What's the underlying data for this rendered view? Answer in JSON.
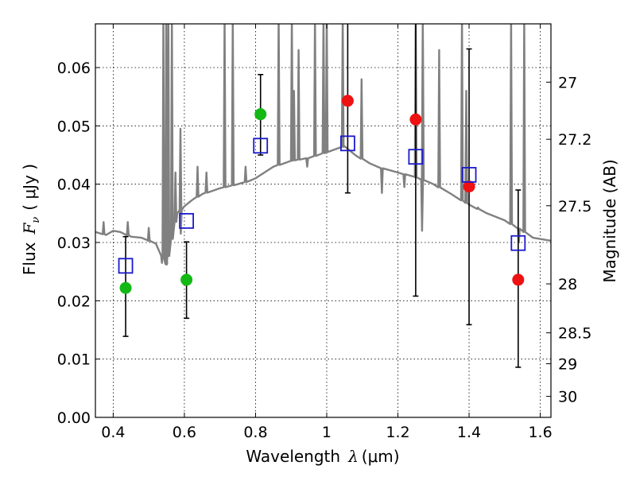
{
  "chart_data": {
    "type": "scatter",
    "title": "",
    "xlabel": {
      "prefix": "Wavelength",
      "symbol": "λ",
      "unit": "(μm)"
    },
    "ylabel": {
      "prefix": "Flux",
      "symbol": "F",
      "sub": "ν",
      "unit": "( μJy )"
    },
    "y2label": "Magnitude (AB)",
    "xlim": [
      0.35,
      1.63
    ],
    "ylim": [
      0.0,
      0.0675
    ],
    "grid": true,
    "xticks": [
      0.4,
      0.6,
      0.8,
      1.0,
      1.2,
      1.4,
      1.6
    ],
    "xtick_labels": [
      "0.4",
      "0.6",
      "0.8",
      "1",
      "1.2",
      "1.4",
      "1.6"
    ],
    "yticks": [
      0.0,
      0.01,
      0.02,
      0.03,
      0.04,
      0.05,
      0.06
    ],
    "ytick_labels": [
      "0.00",
      "0.01",
      "0.02",
      "0.03",
      "0.04",
      "0.05",
      "0.06"
    ],
    "y2ticks": [
      {
        "flux": 0.0575,
        "label": "27"
      },
      {
        "flux": 0.0477,
        "label": "27.2"
      },
      {
        "flux": 0.0363,
        "label": "27.5"
      },
      {
        "flux": 0.0229,
        "label": "28"
      },
      {
        "flux": 0.0145,
        "label": "28.5"
      },
      {
        "flux": 0.0092,
        "label": "29"
      },
      {
        "flux": 0.0036,
        "label": "30"
      }
    ],
    "series": [
      {
        "marker": "circle",
        "color": "#14b814",
        "points": [
          {
            "x": 0.435,
            "y": 0.0222,
            "lo": 0.0139,
            "hi": 0.031
          },
          {
            "x": 0.606,
            "y": 0.0236,
            "lo": 0.017,
            "hi": 0.0301
          },
          {
            "x": 0.814,
            "y": 0.052,
            "lo": 0.045,
            "hi": 0.0588
          }
        ]
      },
      {
        "marker": "circle",
        "color": "#ee1111",
        "points": [
          {
            "x": 1.059,
            "y": 0.0543,
            "lo": 0.0385,
            "hi": 0.07
          },
          {
            "x": 1.25,
            "y": 0.0511,
            "lo": 0.0208,
            "hi": 0.07
          },
          {
            "x": 1.4,
            "y": 0.0396,
            "lo": 0.0159,
            "hi": 0.0632
          },
          {
            "x": 1.538,
            "y": 0.0236,
            "lo": 0.0086,
            "hi": 0.039
          }
        ]
      },
      {
        "marker": "open-square",
        "color": "#1a1acc",
        "points": [
          {
            "x": 0.435,
            "y": 0.026
          },
          {
            "x": 0.606,
            "y": 0.0337
          },
          {
            "x": 0.814,
            "y": 0.0466
          },
          {
            "x": 1.059,
            "y": 0.047
          },
          {
            "x": 1.25,
            "y": 0.0447
          },
          {
            "x": 1.4,
            "y": 0.0416
          },
          {
            "x": 1.538,
            "y": 0.0299
          }
        ]
      }
    ],
    "model_spectrum": {
      "color": "#808080",
      "continuum": [
        [
          0.35,
          0.0318
        ],
        [
          0.38,
          0.0313
        ],
        [
          0.4,
          0.032
        ],
        [
          0.42,
          0.0318
        ],
        [
          0.45,
          0.031
        ],
        [
          0.48,
          0.0308
        ],
        [
          0.5,
          0.0303
        ],
        [
          0.52,
          0.0298
        ],
        [
          0.55,
          0.0262
        ],
        [
          0.58,
          0.035
        ],
        [
          0.6,
          0.0362
        ],
        [
          0.62,
          0.0372
        ],
        [
          0.65,
          0.0383
        ],
        [
          0.7,
          0.0393
        ],
        [
          0.75,
          0.04
        ],
        [
          0.78,
          0.0405
        ],
        [
          0.8,
          0.041
        ],
        [
          0.85,
          0.043
        ],
        [
          0.9,
          0.044
        ],
        [
          0.95,
          0.0445
        ],
        [
          1.0,
          0.0455
        ],
        [
          1.05,
          0.0465
        ],
        [
          1.08,
          0.045
        ],
        [
          1.12,
          0.0436
        ],
        [
          1.15,
          0.0428
        ],
        [
          1.2,
          0.042
        ],
        [
          1.25,
          0.0412
        ],
        [
          1.3,
          0.04
        ],
        [
          1.35,
          0.0383
        ],
        [
          1.4,
          0.0365
        ],
        [
          1.45,
          0.035
        ],
        [
          1.5,
          0.0338
        ],
        [
          1.55,
          0.032
        ],
        [
          1.58,
          0.0308
        ],
        [
          1.63,
          0.0303
        ]
      ],
      "emission_lines": [
        {
          "x": 0.373,
          "h": 0.0335
        },
        {
          "x": 0.441,
          "h": 0.0335
        },
        {
          "x": 0.5,
          "h": 0.0325
        },
        {
          "x": 0.541,
          "h": 0.069
        },
        {
          "x": 0.549,
          "h": 0.069
        },
        {
          "x": 0.555,
          "h": 0.069
        },
        {
          "x": 0.565,
          "h": 0.069
        },
        {
          "x": 0.575,
          "h": 0.042
        },
        {
          "x": 0.589,
          "h": 0.0495
        },
        {
          "x": 0.637,
          "h": 0.043
        },
        {
          "x": 0.662,
          "h": 0.042
        },
        {
          "x": 0.713,
          "h": 0.069
        },
        {
          "x": 0.736,
          "h": 0.069
        },
        {
          "x": 0.772,
          "h": 0.043
        },
        {
          "x": 0.865,
          "h": 0.069
        },
        {
          "x": 0.902,
          "h": 0.069
        },
        {
          "x": 0.908,
          "h": 0.056
        },
        {
          "x": 0.921,
          "h": 0.063
        },
        {
          "x": 0.967,
          "h": 0.069
        },
        {
          "x": 0.991,
          "h": 0.069
        },
        {
          "x": 1.0,
          "h": 0.069
        },
        {
          "x": 1.045,
          "h": 0.069
        },
        {
          "x": 1.098,
          "h": 0.058
        },
        {
          "x": 1.25,
          "h": 0.069
        },
        {
          "x": 1.27,
          "h": 0.069
        },
        {
          "x": 1.316,
          "h": 0.063
        },
        {
          "x": 1.38,
          "h": 0.069
        },
        {
          "x": 1.392,
          "h": 0.056
        },
        {
          "x": 1.518,
          "h": 0.069
        },
        {
          "x": 1.555,
          "h": 0.069
        }
      ],
      "absorption_lines": [
        {
          "x": 0.537,
          "d": 0.0265
        },
        {
          "x": 0.59,
          "d": 0.0315
        },
        {
          "x": 0.945,
          "d": 0.043
        },
        {
          "x": 1.155,
          "d": 0.0385
        },
        {
          "x": 1.218,
          "d": 0.0395
        },
        {
          "x": 1.268,
          "d": 0.032
        },
        {
          "x": 1.425,
          "d": 0.036
        },
        {
          "x": 1.54,
          "d": 0.03
        }
      ]
    }
  }
}
